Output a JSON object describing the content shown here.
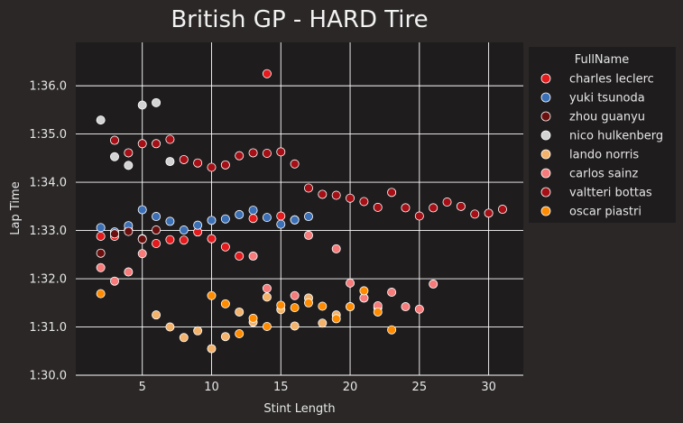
{
  "chart_data": {
    "type": "scatter",
    "title": "British GP - HARD Tire",
    "xlabel": "Stint Length",
    "ylabel": "Lap Time",
    "xlim": [
      0.2,
      32.5
    ],
    "ylim": [
      90.0,
      96.9
    ],
    "xticks": [
      5,
      10,
      15,
      20,
      25,
      30
    ],
    "xtick_labels": [
      "5",
      "10",
      "15",
      "20",
      "25",
      "30"
    ],
    "yticks": [
      90,
      91,
      92,
      93,
      94,
      95,
      96
    ],
    "ytick_labels": [
      "1:30.0",
      "1:31.0",
      "1:32.0",
      "1:33.0",
      "1:34.0",
      "1:35.0",
      "1:36.0"
    ],
    "grid": true,
    "legend": {
      "title": "FullName",
      "placement": "outside-right"
    },
    "series": [
      {
        "name": "charles leclerc",
        "color": "#e41a1c",
        "x": [
          2,
          3,
          4,
          5,
          6,
          7,
          8,
          9,
          10,
          11,
          12,
          13,
          14,
          15,
          16
        ],
        "y": [
          92.88,
          92.88,
          93.02,
          92.83,
          92.73,
          92.81,
          92.8,
          92.97,
          92.83,
          92.66,
          92.47,
          93.25,
          96.25,
          93.3,
          93.22
        ]
      },
      {
        "name": "yuki tsunoda",
        "color": "#3b6fb6",
        "x": [
          2,
          3,
          4,
          5,
          6,
          7,
          8,
          9,
          10,
          11,
          12,
          13,
          14,
          15,
          16,
          17
        ],
        "y": [
          93.06,
          92.97,
          93.1,
          93.43,
          93.29,
          93.19,
          93.01,
          93.11,
          93.21,
          93.24,
          93.33,
          93.42,
          93.27,
          93.13,
          93.22,
          93.29
        ]
      },
      {
        "name": "zhou guanyu",
        "color": "#6b0f0f",
        "x": [
          2,
          3,
          4,
          5,
          6
        ],
        "y": [
          92.53,
          92.93,
          92.98,
          92.82,
          93.01
        ]
      },
      {
        "name": "nico hulkenberg",
        "color": "#d3d3d3",
        "x": [
          2,
          3,
          4,
          5,
          6,
          7
        ],
        "y": [
          95.29,
          94.53,
          94.35,
          95.6,
          95.65,
          94.43
        ]
      },
      {
        "name": "lando norris",
        "color": "#f4b36a",
        "x": [
          6,
          7,
          8,
          9,
          10,
          11,
          12,
          13,
          14,
          15,
          16,
          17,
          18,
          19,
          20,
          21,
          22
        ],
        "y": [
          91.25,
          91.0,
          90.78,
          90.92,
          90.55,
          90.8,
          91.31,
          91.1,
          91.62,
          91.36,
          91.02,
          91.6,
          91.08,
          91.25,
          91.42,
          91.6,
          91.4
        ]
      },
      {
        "name": "carlos sainz",
        "color": "#f77b7b",
        "x": [
          2,
          3,
          4,
          5,
          13,
          14,
          16,
          17,
          19,
          20,
          21,
          22,
          23,
          24,
          25,
          26
        ],
        "y": [
          92.23,
          91.95,
          92.14,
          92.52,
          92.47,
          91.8,
          91.65,
          92.9,
          92.62,
          91.91,
          91.6,
          91.44,
          91.72,
          91.42,
          91.37,
          91.89
        ]
      },
      {
        "name": "valtteri bottas",
        "color": "#a50f15",
        "x": [
          3,
          4,
          5,
          6,
          7,
          8,
          9,
          10,
          11,
          12,
          13,
          14,
          15,
          16,
          17,
          18,
          19,
          20,
          21,
          22,
          23,
          24,
          25,
          26,
          27,
          28,
          29,
          30,
          31
        ],
        "y": [
          94.87,
          94.61,
          94.8,
          94.8,
          94.89,
          94.47,
          94.4,
          94.31,
          94.36,
          94.55,
          94.61,
          94.6,
          94.63,
          94.38,
          93.88,
          93.75,
          93.73,
          93.67,
          93.6,
          93.48,
          93.79,
          93.47,
          93.3,
          93.47,
          93.59,
          93.5,
          93.34,
          93.36,
          93.44
        ]
      },
      {
        "name": "oscar piastri",
        "color": "#ff8c00",
        "x": [
          2,
          10,
          11,
          12,
          13,
          14,
          15,
          16,
          17,
          18,
          19,
          20,
          21,
          22,
          23
        ],
        "y": [
          91.69,
          91.65,
          91.48,
          90.86,
          91.18,
          91.01,
          91.45,
          91.4,
          91.5,
          91.43,
          91.17,
          91.42,
          91.75,
          91.31,
          90.94
        ]
      }
    ]
  }
}
